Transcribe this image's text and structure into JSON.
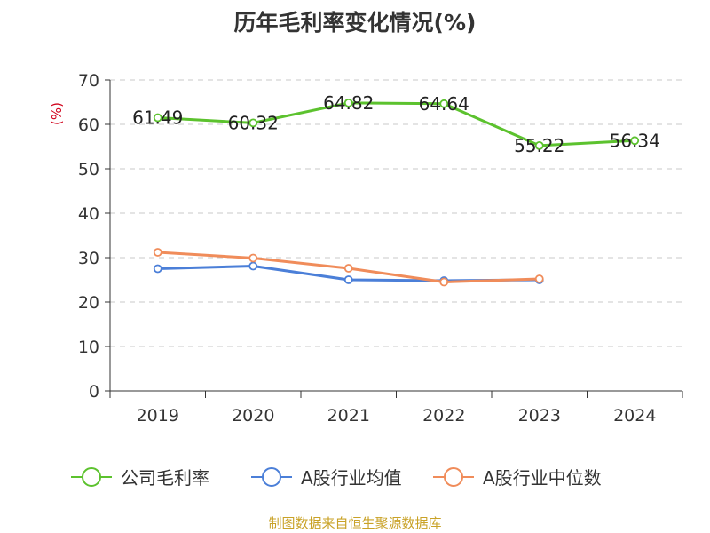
{
  "chart_data": {
    "type": "line",
    "title": "历年毛利率变化情况(%)",
    "ylabel": "(%)",
    "ylim": [
      0,
      70
    ],
    "yticks": [
      0,
      10,
      20,
      30,
      40,
      50,
      60,
      70
    ],
    "grid": true,
    "legend_position": "bottom",
    "categories": [
      "2019",
      "2020",
      "2021",
      "2022",
      "2023",
      "2024"
    ],
    "series": [
      {
        "name": "公司毛利率",
        "color": "#5cc22e",
        "values": [
          61.49,
          60.32,
          64.82,
          64.64,
          55.22,
          56.34
        ],
        "labels": [
          "61.49",
          "60.32",
          "64.82",
          "64.64",
          "55.22",
          "56.34"
        ]
      },
      {
        "name": "A股行业均值",
        "color": "#4b7fd8",
        "values": [
          27.5,
          28.1,
          25.0,
          24.8,
          25.0,
          null
        ]
      },
      {
        "name": "A股行业中位数",
        "color": "#f08c5a",
        "values": [
          31.2,
          29.9,
          27.6,
          24.5,
          25.2,
          null
        ]
      }
    ]
  },
  "source": "制图数据来自恒生聚源数据库"
}
